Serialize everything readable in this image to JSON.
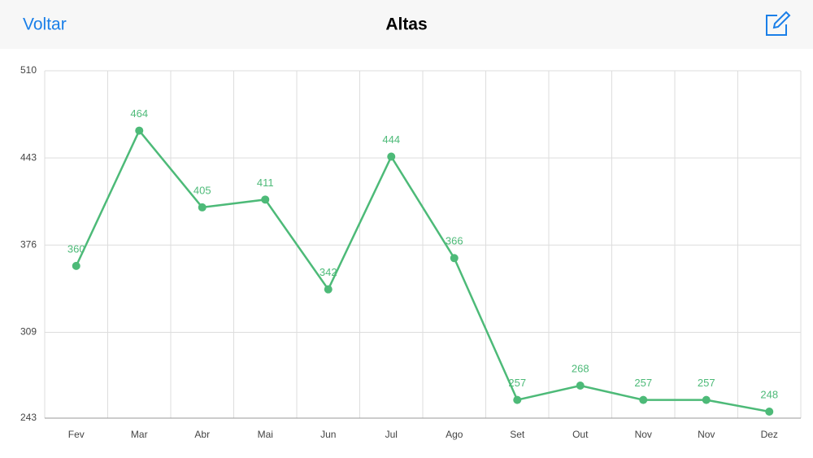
{
  "nav": {
    "back": "Voltar",
    "title": "Altas"
  },
  "chart_data": {
    "type": "line",
    "categories": [
      "Fev",
      "Mar",
      "Abr",
      "Mai",
      "Jun",
      "Jul",
      "Ago",
      "Set",
      "Out",
      "Nov",
      "Nov",
      "Dez"
    ],
    "values": [
      360,
      464,
      405,
      411,
      342,
      444,
      366,
      257,
      268,
      257,
      257,
      248
    ],
    "color": "#4dba78",
    "ylim": [
      243,
      510
    ],
    "yticks": [
      243,
      309,
      376,
      443,
      510
    ],
    "grid": true,
    "data_labels": true
  }
}
